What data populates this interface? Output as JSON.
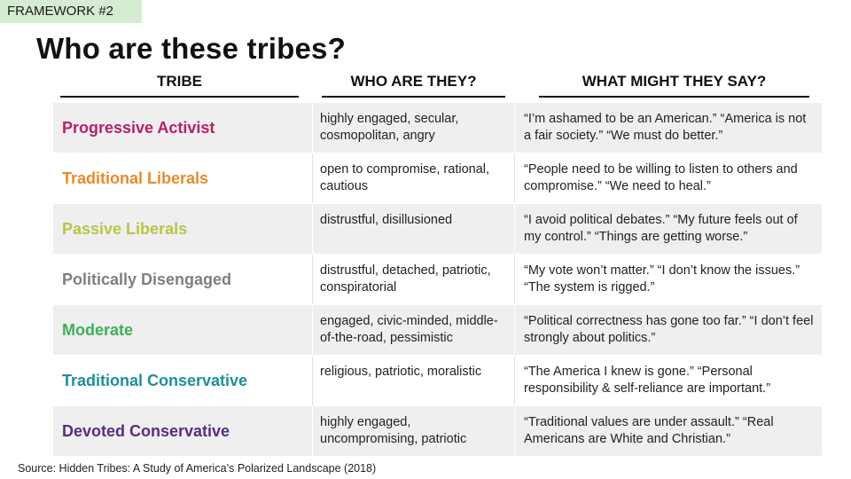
{
  "tag": "FRAMEWORK #2",
  "title": "Who are these tribes?",
  "headers": {
    "tribe": "TRIBE",
    "who": "WHO ARE THEY?",
    "say": "WHAT MIGHT THEY SAY?"
  },
  "rows": [
    {
      "tribe": "Progressive Activist",
      "color": "#b5206e",
      "who": "highly engaged, secular, cosmopolitan, angry",
      "say": "“I’m ashamed to be an American.” “America is not a fair society.” “We must do better.”"
    },
    {
      "tribe": "Traditional Liberals",
      "color": "#e98a2b",
      "who": "open to compromise, rational, cautious",
      "say": "“People need to be willing to listen to others and compromise.” “We need to heal.”"
    },
    {
      "tribe": "Passive Liberals",
      "color": "#b9c546",
      "who": "distrustful, disillusioned",
      "say": "“I avoid political debates.” “My future feels out of my control.” “Things are getting worse.”"
    },
    {
      "tribe": "Politically Disengaged",
      "color": "#7f7f7f",
      "who": "distrustful, detached, patriotic, conspiratorial",
      "say": "“My vote won’t matter.” “I don’t know the issues.” “The system is rigged.”"
    },
    {
      "tribe": "Moderate",
      "color": "#3fae5a",
      "who": "engaged, civic-minded, middle-of-the-road, pessimistic",
      "say": "“Political correctness has gone too far.” “I don’t feel strongly about politics.”"
    },
    {
      "tribe": "Traditional Conservative",
      "color": "#1d8f9a",
      "who": "religious, patriotic, moralistic",
      "say": "“The America I knew is gone.” “Personal responsibility & self-reliance are important.”"
    },
    {
      "tribe": "Devoted Conservative",
      "color": "#5b2a86",
      "who": "highly engaged, uncompromising, patriotic",
      "say": "“Traditional values are under assault.” “Real Americans are White and Christian.”"
    }
  ],
  "source": "Source: Hidden Tribes: A Study of America’s Polarized Landscape (2018)"
}
